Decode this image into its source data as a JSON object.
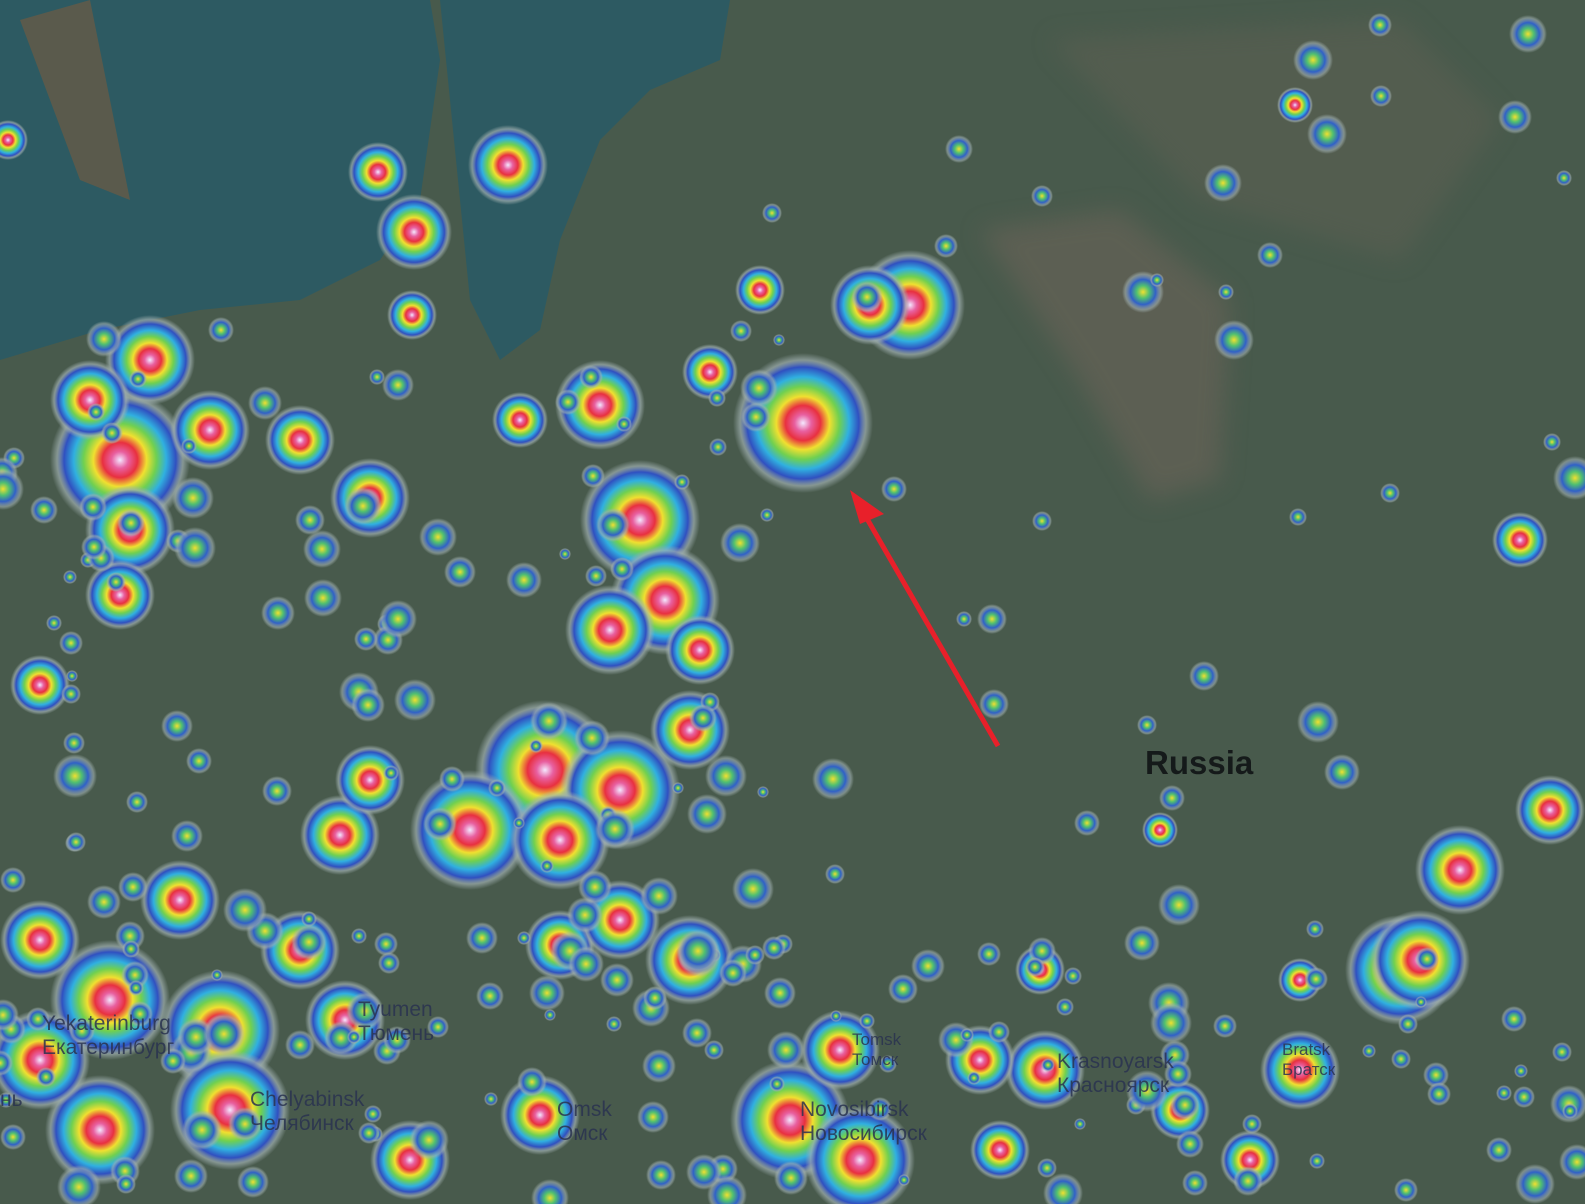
{
  "map": {
    "type": "light pollution map",
    "country_label": "Russia",
    "cities": [
      {
        "name_en": "Yekaterinburg",
        "name_ru": "Екатеринбург"
      },
      {
        "name_en": "Tyumen",
        "name_ru": "Тюмень"
      },
      {
        "name_en": "Chelyabinsk",
        "name_ru": "Челябинск"
      },
      {
        "name_en": "Omsk",
        "name_ru": "Омск"
      },
      {
        "name_en": "Novosibirsk",
        "name_ru": "Новосибирск"
      },
      {
        "name_en": "Tomsk",
        "name_ru": "Томск"
      },
      {
        "name_en": "Krasnoyarsk",
        "name_ru": "Красноярск"
      },
      {
        "name_en": "Bratsk",
        "name_ru": "Братск"
      }
    ],
    "partial_label": "нь",
    "annotation": {
      "type": "arrow",
      "color": "#e8202a"
    },
    "colors": {
      "land": "#485a4c",
      "sea": "#2d5a62",
      "highlands": "#6b6458"
    }
  }
}
